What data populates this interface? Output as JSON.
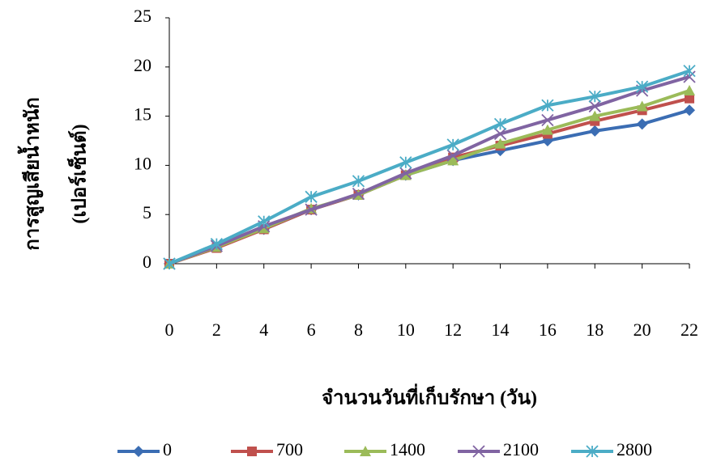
{
  "chart_data": {
    "type": "line",
    "y_label": [
      "การสูญเสียน้ำหนัก",
      "(เปอร์เซ็นต์)"
    ],
    "x_label": "จำนวนวันที่เก็บรักษา (วัน)",
    "x": [
      0,
      2,
      4,
      6,
      8,
      10,
      12,
      14,
      16,
      18,
      20,
      22
    ],
    "xlim": [
      0,
      22
    ],
    "xticks": [
      0,
      2,
      4,
      6,
      8,
      10,
      12,
      14,
      16,
      18,
      20,
      22
    ],
    "ylim": [
      0,
      25
    ],
    "yticks": [
      0,
      5,
      10,
      15,
      20,
      25
    ],
    "grid": false,
    "legend": "bottom",
    "series": [
      {
        "name": "0",
        "color": "#3b6db3",
        "marker": "diamond",
        "values": [
          0,
          1.7,
          3.5,
          5.5,
          7.0,
          9.0,
          10.5,
          11.5,
          12.5,
          13.5,
          14.2,
          15.6
        ]
      },
      {
        "name": "700",
        "color": "#c0504d",
        "marker": "square",
        "values": [
          0,
          1.6,
          3.5,
          5.5,
          7.0,
          9.0,
          10.8,
          12.0,
          13.2,
          14.5,
          15.6,
          16.8
        ]
      },
      {
        "name": "1400",
        "color": "#9bbb59",
        "marker": "triangle",
        "values": [
          0,
          1.7,
          3.6,
          5.6,
          7.0,
          9.0,
          10.5,
          12.2,
          13.6,
          15.0,
          16.0,
          17.6
        ]
      },
      {
        "name": "2100",
        "color": "#8064a2",
        "marker": "x",
        "values": [
          0,
          1.8,
          3.8,
          5.5,
          7.1,
          9.2,
          11.0,
          13.2,
          14.6,
          16.0,
          17.6,
          19.0
        ]
      },
      {
        "name": "2800",
        "color": "#4bacc6",
        "marker": "star",
        "values": [
          0,
          2.0,
          4.3,
          6.8,
          8.4,
          10.3,
          12.1,
          14.2,
          16.1,
          17.0,
          18.0,
          19.6
        ]
      }
    ]
  }
}
